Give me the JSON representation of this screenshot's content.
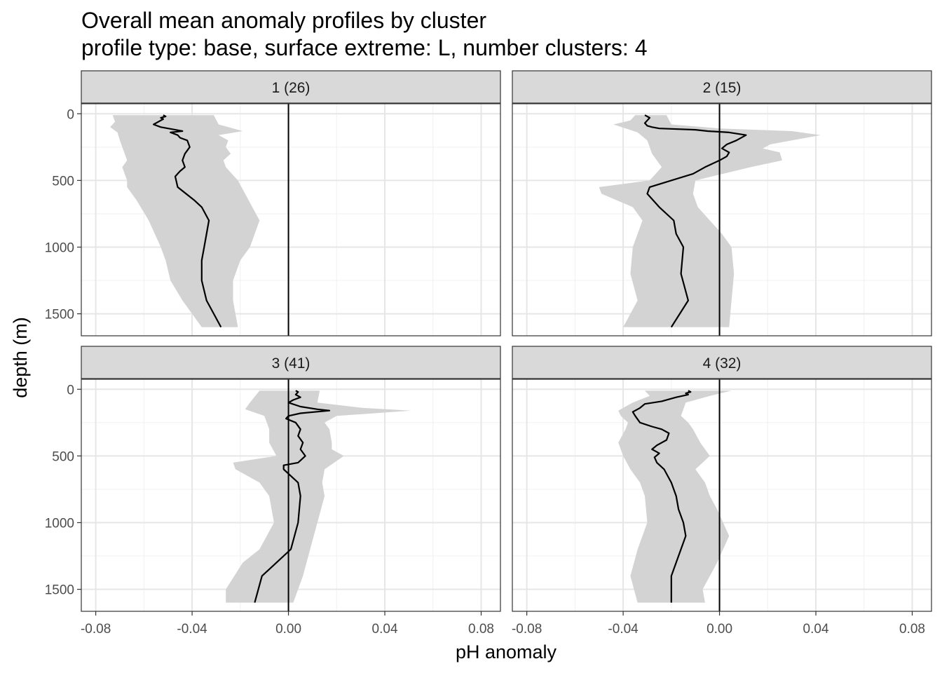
{
  "chart_data": {
    "type": "line",
    "title": "Overall mean anomaly profiles by cluster",
    "subtitle": "profile type: base, surface extreme: L, number clusters: 4",
    "xlabel": "pH anomaly",
    "ylabel": "depth (m)",
    "xlim": [
      -0.086,
      0.088
    ],
    "ylim": [
      1665,
      -75
    ],
    "y_reversed": true,
    "x_ticks": [
      -0.08,
      -0.04,
      0.0,
      0.04,
      0.08
    ],
    "x_tick_labels": [
      "-0.08",
      "-0.04",
      "0.00",
      "0.04",
      "0.08"
    ],
    "y_ticks": [
      0,
      500,
      1000,
      1500
    ],
    "y_tick_labels": [
      "0",
      "500",
      "1000",
      "1500"
    ],
    "grid": true,
    "reference_line_x": 0,
    "band_color": "#d3d3d3",
    "line_color": "#000000",
    "strip_color": "#d9d9d9",
    "panels": [
      {
        "label": "1 (26)",
        "mean": [
          [
            -0.052,
            10
          ],
          [
            -0.051,
            20
          ],
          [
            -0.053,
            30
          ],
          [
            -0.052,
            40
          ],
          [
            -0.054,
            60
          ],
          [
            -0.056,
            80
          ],
          [
            -0.053,
            100
          ],
          [
            -0.05,
            110
          ],
          [
            -0.047,
            120
          ],
          [
            -0.044,
            130
          ],
          [
            -0.049,
            140
          ],
          [
            -0.046,
            160
          ],
          [
            -0.045,
            180
          ],
          [
            -0.042,
            200
          ],
          [
            -0.041,
            250
          ],
          [
            -0.043,
            300
          ],
          [
            -0.044,
            350
          ],
          [
            -0.043,
            400
          ],
          [
            -0.045,
            430
          ],
          [
            -0.047,
            470
          ],
          [
            -0.046,
            550
          ],
          [
            -0.039,
            650
          ],
          [
            -0.036,
            700
          ],
          [
            -0.033,
            800
          ],
          [
            -0.035,
            1000
          ],
          [
            -0.036,
            1100
          ],
          [
            -0.036,
            1250
          ],
          [
            -0.034,
            1400
          ],
          [
            -0.028,
            1600
          ]
        ],
        "band_lo": [
          [
            -0.073,
            10
          ],
          [
            -0.072,
            60
          ],
          [
            -0.074,
            100
          ],
          [
            -0.071,
            140
          ],
          [
            -0.07,
            200
          ],
          [
            -0.068,
            300
          ],
          [
            -0.067,
            350
          ],
          [
            -0.069,
            400
          ],
          [
            -0.067,
            500
          ],
          [
            -0.067,
            550
          ],
          [
            -0.063,
            650
          ],
          [
            -0.058,
            800
          ],
          [
            -0.053,
            1000
          ],
          [
            -0.051,
            1100
          ],
          [
            -0.049,
            1250
          ],
          [
            -0.044,
            1400
          ],
          [
            -0.036,
            1600
          ]
        ],
        "band_hi": [
          [
            -0.031,
            10
          ],
          [
            -0.029,
            80
          ],
          [
            -0.019,
            130
          ],
          [
            -0.029,
            160
          ],
          [
            -0.025,
            200
          ],
          [
            -0.026,
            250
          ],
          [
            -0.024,
            300
          ],
          [
            -0.027,
            350
          ],
          [
            -0.026,
            400
          ],
          [
            -0.021,
            500
          ],
          [
            -0.018,
            600
          ],
          [
            -0.015,
            700
          ],
          [
            -0.012,
            800
          ],
          [
            -0.016,
            1000
          ],
          [
            -0.02,
            1100
          ],
          [
            -0.023,
            1250
          ],
          [
            -0.023,
            1400
          ],
          [
            -0.021,
            1600
          ]
        ]
      },
      {
        "label": "2 (15)",
        "mean": [
          [
            -0.031,
            10
          ],
          [
            -0.029,
            30
          ],
          [
            -0.03,
            50
          ],
          [
            -0.031,
            70
          ],
          [
            -0.03,
            90
          ],
          [
            -0.028,
            100
          ],
          [
            -0.025,
            110
          ],
          [
            -0.01,
            120
          ],
          [
            -0.005,
            130
          ],
          [
            0.004,
            140
          ],
          [
            0.011,
            160
          ],
          [
            0.007,
            200
          ],
          [
            0.003,
            230
          ],
          [
            0.001,
            260
          ],
          [
            0.004,
            290
          ],
          [
            0.003,
            320
          ],
          [
            0.0,
            350
          ],
          [
            -0.006,
            400
          ],
          [
            -0.011,
            450
          ],
          [
            -0.029,
            550
          ],
          [
            -0.03,
            600
          ],
          [
            -0.025,
            700
          ],
          [
            -0.019,
            800
          ],
          [
            -0.018,
            900
          ],
          [
            -0.015,
            1000
          ],
          [
            -0.016,
            1200
          ],
          [
            -0.013,
            1400
          ],
          [
            -0.02,
            1600
          ]
        ],
        "band_lo": [
          [
            -0.035,
            10
          ],
          [
            -0.037,
            50
          ],
          [
            -0.044,
            80
          ],
          [
            -0.034,
            140
          ],
          [
            -0.03,
            200
          ],
          [
            -0.028,
            300
          ],
          [
            -0.024,
            400
          ],
          [
            -0.029,
            500
          ],
          [
            -0.05,
            550
          ],
          [
            -0.049,
            600
          ],
          [
            -0.036,
            700
          ],
          [
            -0.032,
            800
          ],
          [
            -0.036,
            1000
          ],
          [
            -0.037,
            1200
          ],
          [
            -0.034,
            1400
          ],
          [
            -0.04,
            1600
          ]
        ],
        "band_hi": [
          [
            -0.022,
            10
          ],
          [
            -0.02,
            80
          ],
          [
            0.0,
            110
          ],
          [
            0.03,
            130
          ],
          [
            0.042,
            160
          ],
          [
            0.021,
            230
          ],
          [
            0.018,
            260
          ],
          [
            0.025,
            290
          ],
          [
            0.026,
            350
          ],
          [
            0.013,
            400
          ],
          [
            -0.01,
            500
          ],
          [
            -0.011,
            600
          ],
          [
            -0.009,
            700
          ],
          [
            -0.004,
            800
          ],
          [
            0.001,
            900
          ],
          [
            0.005,
            1000
          ],
          [
            0.006,
            1200
          ],
          [
            0.005,
            1400
          ],
          [
            0.004,
            1600
          ]
        ]
      },
      {
        "label": "3 (41)",
        "mean": [
          [
            0.003,
            10
          ],
          [
            0.004,
            20
          ],
          [
            0.003,
            40
          ],
          [
            0.005,
            60
          ],
          [
            0.002,
            80
          ],
          [
            0.0,
            100
          ],
          [
            0.005,
            130
          ],
          [
            0.012,
            150
          ],
          [
            0.017,
            160
          ],
          [
            0.005,
            180
          ],
          [
            0.0,
            200
          ],
          [
            -0.001,
            220
          ],
          [
            0.003,
            250
          ],
          [
            0.005,
            300
          ],
          [
            0.004,
            350
          ],
          [
            0.006,
            400
          ],
          [
            0.005,
            450
          ],
          [
            0.007,
            500
          ],
          [
            0.004,
            550
          ],
          [
            -0.002,
            570
          ],
          [
            -0.002,
            600
          ],
          [
            0.001,
            650
          ],
          [
            0.004,
            700
          ],
          [
            0.005,
            800
          ],
          [
            0.004,
            1000
          ],
          [
            0.001,
            1200
          ],
          [
            -0.005,
            1300
          ],
          [
            -0.011,
            1400
          ],
          [
            -0.014,
            1600
          ]
        ],
        "band_lo": [
          [
            -0.012,
            10
          ],
          [
            -0.016,
            100
          ],
          [
            -0.018,
            150
          ],
          [
            -0.01,
            200
          ],
          [
            -0.008,
            300
          ],
          [
            -0.008,
            400
          ],
          [
            -0.005,
            500
          ],
          [
            -0.023,
            550
          ],
          [
            -0.022,
            600
          ],
          [
            -0.012,
            700
          ],
          [
            -0.008,
            800
          ],
          [
            -0.006,
            1000
          ],
          [
            -0.012,
            1200
          ],
          [
            -0.019,
            1300
          ],
          [
            -0.026,
            1500
          ],
          [
            -0.026,
            1600
          ]
        ],
        "band_hi": [
          [
            0.013,
            10
          ],
          [
            0.012,
            100
          ],
          [
            0.031,
            140
          ],
          [
            0.051,
            160
          ],
          [
            0.02,
            200
          ],
          [
            0.015,
            250
          ],
          [
            0.017,
            300
          ],
          [
            0.018,
            400
          ],
          [
            0.018,
            450
          ],
          [
            0.023,
            500
          ],
          [
            0.019,
            550
          ],
          [
            0.015,
            600
          ],
          [
            0.014,
            700
          ],
          [
            0.015,
            800
          ],
          [
            0.012,
            1000
          ],
          [
            0.009,
            1200
          ],
          [
            0.006,
            1400
          ],
          [
            0.002,
            1600
          ]
        ]
      },
      {
        "label": "4 (32)",
        "mean": [
          [
            -0.013,
            10
          ],
          [
            -0.012,
            20
          ],
          [
            -0.014,
            30
          ],
          [
            -0.013,
            40
          ],
          [
            -0.018,
            60
          ],
          [
            -0.024,
            90
          ],
          [
            -0.031,
            110
          ],
          [
            -0.033,
            140
          ],
          [
            -0.036,
            170
          ],
          [
            -0.035,
            200
          ],
          [
            -0.033,
            250
          ],
          [
            -0.028,
            280
          ],
          [
            -0.024,
            300
          ],
          [
            -0.021,
            330
          ],
          [
            -0.022,
            380
          ],
          [
            -0.026,
            420
          ],
          [
            -0.028,
            450
          ],
          [
            -0.025,
            480
          ],
          [
            -0.027,
            510
          ],
          [
            -0.026,
            550
          ],
          [
            -0.023,
            600
          ],
          [
            -0.02,
            700
          ],
          [
            -0.018,
            800
          ],
          [
            -0.017,
            900
          ],
          [
            -0.015,
            1000
          ],
          [
            -0.014,
            1100
          ],
          [
            -0.02,
            1400
          ],
          [
            -0.02,
            1600
          ]
        ],
        "band_lo": [
          [
            -0.031,
            10
          ],
          [
            -0.029,
            50
          ],
          [
            -0.036,
            100
          ],
          [
            -0.042,
            160
          ],
          [
            -0.041,
            200
          ],
          [
            -0.038,
            250
          ],
          [
            -0.039,
            300
          ],
          [
            -0.042,
            400
          ],
          [
            -0.04,
            500
          ],
          [
            -0.037,
            600
          ],
          [
            -0.033,
            700
          ],
          [
            -0.031,
            800
          ],
          [
            -0.03,
            1000
          ],
          [
            -0.034,
            1200
          ],
          [
            -0.037,
            1400
          ],
          [
            -0.034,
            1600
          ]
        ],
        "band_hi": [
          [
            0.005,
            10
          ],
          [
            -0.004,
            50
          ],
          [
            -0.014,
            100
          ],
          [
            -0.016,
            200
          ],
          [
            -0.013,
            250
          ],
          [
            -0.011,
            300
          ],
          [
            -0.008,
            400
          ],
          [
            -0.004,
            500
          ],
          [
            -0.01,
            600
          ],
          [
            -0.006,
            700
          ],
          [
            -0.004,
            800
          ],
          [
            -0.001,
            900
          ],
          [
            0.004,
            1100
          ],
          [
            -0.001,
            1300
          ],
          [
            -0.007,
            1500
          ],
          [
            -0.006,
            1600
          ]
        ]
      }
    ]
  }
}
